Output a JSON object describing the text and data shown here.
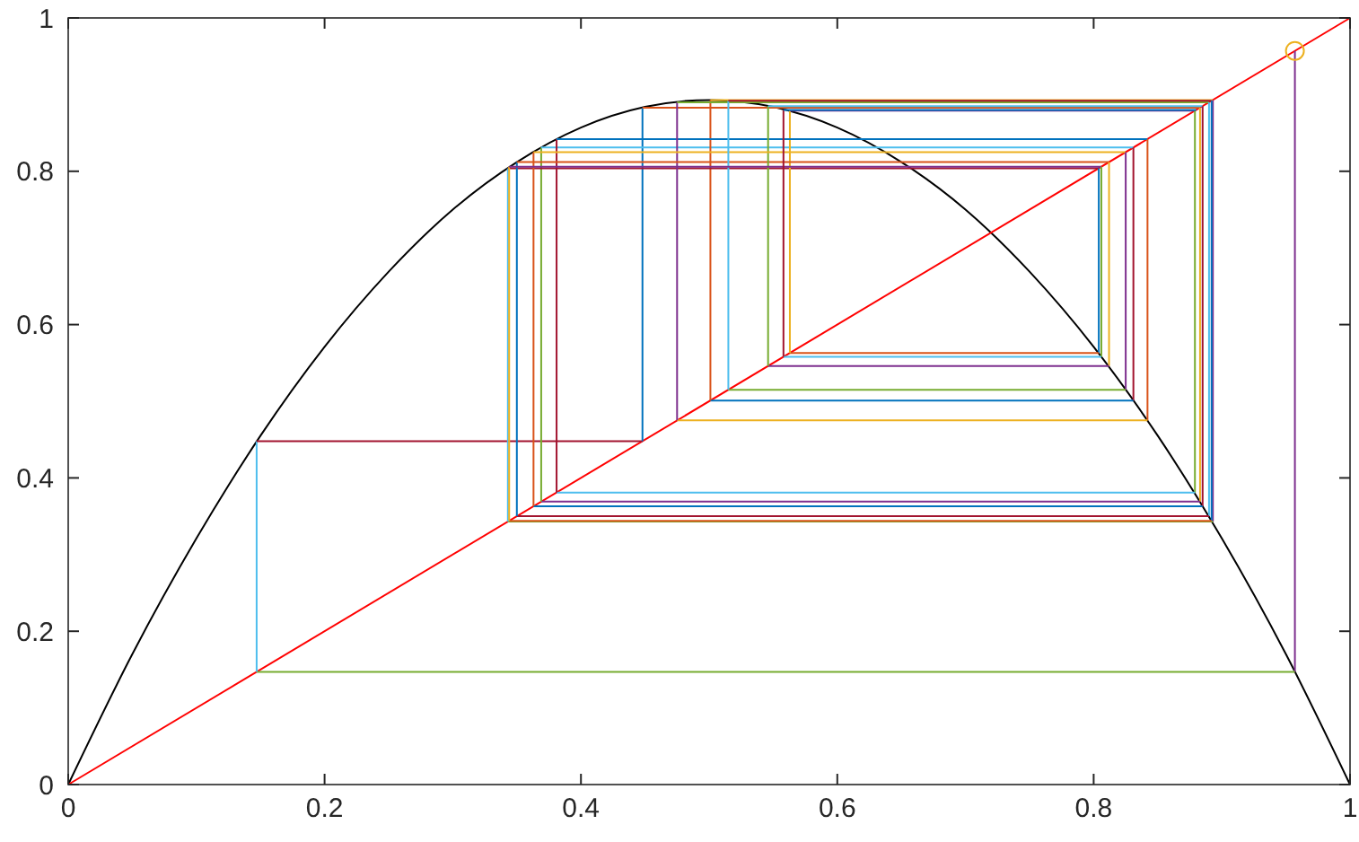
{
  "chart_data": {
    "type": "line",
    "xlim": [
      0,
      1
    ],
    "ylim": [
      0,
      1
    ],
    "xticks": [
      0,
      0.2,
      0.4,
      0.6,
      0.8,
      1
    ],
    "yticks": [
      0,
      0.2,
      0.4,
      0.6,
      0.8,
      1
    ],
    "grid": false,
    "series": [
      {
        "color": "#000000",
        "x": [
          0,
          0.05,
          0.1,
          0.15,
          0.2,
          0.25,
          0.3,
          0.35,
          0.4,
          0.45,
          0.5,
          0.55,
          0.6,
          0.65,
          0.7,
          0.75,
          0.8,
          0.85,
          0.9,
          0.95,
          1
        ],
        "values": [
          0,
          0.17,
          0.321,
          0.455,
          0.571,
          0.669,
          0.75,
          0.812,
          0.857,
          0.884,
          0.893,
          0.884,
          0.857,
          0.812,
          0.75,
          0.669,
          0.571,
          0.455,
          0.321,
          0.17,
          0
        ]
      },
      {
        "color": "#ff0000",
        "x": [
          0,
          1
        ],
        "values": [
          0,
          1
        ]
      },
      {
        "color": "#7e2f8e",
        "x": [
          0.957,
          0.957
        ],
        "values": [
          0.957,
          0.147
        ]
      },
      {
        "color": "#77ac30",
        "x": [
          0.957,
          0.147
        ],
        "values": [
          0.147,
          0.147
        ]
      },
      {
        "color": "#4dbeee",
        "x": [
          0.147,
          0.147
        ],
        "values": [
          0.147,
          0.448
        ]
      },
      {
        "color": "#a2142f",
        "x": [
          0.147,
          0.448
        ],
        "values": [
          0.448,
          0.448
        ]
      },
      {
        "color": "#0072bd",
        "x": [
          0.448,
          0.448
        ],
        "values": [
          0.448,
          0.883
        ]
      },
      {
        "color": "#d95319",
        "x": [
          0.448,
          0.883
        ],
        "values": [
          0.883,
          0.883
        ]
      },
      {
        "color": "#edb120",
        "x": [
          0.883,
          0.883
        ],
        "values": [
          0.883,
          0.369
        ]
      },
      {
        "color": "#7e2f8e",
        "x": [
          0.883,
          0.369
        ],
        "values": [
          0.369,
          0.369
        ]
      },
      {
        "color": "#77ac30",
        "x": [
          0.369,
          0.369
        ],
        "values": [
          0.369,
          0.831
        ]
      },
      {
        "color": "#4dbeee",
        "x": [
          0.369,
          0.831
        ],
        "values": [
          0.831,
          0.831
        ]
      },
      {
        "color": "#a2142f",
        "x": [
          0.831,
          0.831
        ],
        "values": [
          0.831,
          0.501
        ]
      },
      {
        "color": "#0072bd",
        "x": [
          0.831,
          0.501
        ],
        "values": [
          0.501,
          0.501
        ]
      },
      {
        "color": "#d95319",
        "x": [
          0.501,
          0.501
        ],
        "values": [
          0.501,
          0.893
        ]
      },
      {
        "color": "#edb120",
        "x": [
          0.501,
          0.893
        ],
        "values": [
          0.893,
          0.893
        ]
      },
      {
        "color": "#7e2f8e",
        "x": [
          0.893,
          0.893
        ],
        "values": [
          0.893,
          0.343
        ]
      },
      {
        "color": "#77ac30",
        "x": [
          0.893,
          0.343
        ],
        "values": [
          0.343,
          0.343
        ]
      },
      {
        "color": "#4dbeee",
        "x": [
          0.343,
          0.343
        ],
        "values": [
          0.343,
          0.804
        ]
      },
      {
        "color": "#a2142f",
        "x": [
          0.343,
          0.804
        ],
        "values": [
          0.804,
          0.804
        ]
      },
      {
        "color": "#0072bd",
        "x": [
          0.804,
          0.804
        ],
        "values": [
          0.804,
          0.563
        ]
      },
      {
        "color": "#d95319",
        "x": [
          0.804,
          0.563
        ],
        "values": [
          0.563,
          0.563
        ]
      },
      {
        "color": "#edb120",
        "x": [
          0.563,
          0.563
        ],
        "values": [
          0.563,
          0.879
        ]
      },
      {
        "color": "#7e2f8e",
        "x": [
          0.563,
          0.879
        ],
        "values": [
          0.879,
          0.879
        ]
      },
      {
        "color": "#77ac30",
        "x": [
          0.879,
          0.879
        ],
        "values": [
          0.879,
          0.381
        ]
      },
      {
        "color": "#4dbeee",
        "x": [
          0.879,
          0.381
        ],
        "values": [
          0.381,
          0.381
        ]
      },
      {
        "color": "#a2142f",
        "x": [
          0.381,
          0.381
        ],
        "values": [
          0.381,
          0.842
        ]
      },
      {
        "color": "#0072bd",
        "x": [
          0.381,
          0.842
        ],
        "values": [
          0.842,
          0.842
        ]
      },
      {
        "color": "#d95319",
        "x": [
          0.842,
          0.842
        ],
        "values": [
          0.842,
          0.475
        ]
      },
      {
        "color": "#edb120",
        "x": [
          0.842,
          0.475
        ],
        "values": [
          0.475,
          0.475
        ]
      },
      {
        "color": "#7e2f8e",
        "x": [
          0.475,
          0.475
        ],
        "values": [
          0.475,
          0.89
        ]
      },
      {
        "color": "#77ac30",
        "x": [
          0.475,
          0.89
        ],
        "values": [
          0.89,
          0.89
        ]
      },
      {
        "color": "#4dbeee",
        "x": [
          0.89,
          0.89
        ],
        "values": [
          0.89,
          0.35
        ]
      },
      {
        "color": "#a2142f",
        "x": [
          0.89,
          0.35
        ],
        "values": [
          0.35,
          0.35
        ]
      },
      {
        "color": "#0072bd",
        "x": [
          0.35,
          0.35
        ],
        "values": [
          0.35,
          0.812
        ]
      },
      {
        "color": "#d95319",
        "x": [
          0.35,
          0.812
        ],
        "values": [
          0.812,
          0.812
        ]
      },
      {
        "color": "#edb120",
        "x": [
          0.812,
          0.812
        ],
        "values": [
          0.812,
          0.546
        ]
      },
      {
        "color": "#7e2f8e",
        "x": [
          0.812,
          0.546
        ],
        "values": [
          0.546,
          0.546
        ]
      },
      {
        "color": "#77ac30",
        "x": [
          0.546,
          0.546
        ],
        "values": [
          0.546,
          0.885
        ]
      },
      {
        "color": "#4dbeee",
        "x": [
          0.546,
          0.885
        ],
        "values": [
          0.885,
          0.885
        ]
      },
      {
        "color": "#a2142f",
        "x": [
          0.885,
          0.885
        ],
        "values": [
          0.885,
          0.363
        ]
      },
      {
        "color": "#0072bd",
        "x": [
          0.885,
          0.363
        ],
        "values": [
          0.363,
          0.363
        ]
      },
      {
        "color": "#d95319",
        "x": [
          0.363,
          0.363
        ],
        "values": [
          0.363,
          0.825
        ]
      },
      {
        "color": "#edb120",
        "x": [
          0.363,
          0.825
        ],
        "values": [
          0.825,
          0.825
        ]
      },
      {
        "color": "#7e2f8e",
        "x": [
          0.825,
          0.825
        ],
        "values": [
          0.825,
          0.515
        ]
      },
      {
        "color": "#77ac30",
        "x": [
          0.825,
          0.515
        ],
        "values": [
          0.515,
          0.515
        ]
      },
      {
        "color": "#4dbeee",
        "x": [
          0.515,
          0.515
        ],
        "values": [
          0.515,
          0.892
        ]
      },
      {
        "color": "#a2142f",
        "x": [
          0.515,
          0.892
        ],
        "values": [
          0.892,
          0.892
        ]
      },
      {
        "color": "#0072bd",
        "x": [
          0.892,
          0.892
        ],
        "values": [
          0.892,
          0.344
        ]
      },
      {
        "color": "#d95319",
        "x": [
          0.892,
          0.344
        ],
        "values": [
          0.344,
          0.344
        ]
      },
      {
        "color": "#edb120",
        "x": [
          0.344,
          0.344
        ],
        "values": [
          0.344,
          0.806
        ]
      },
      {
        "color": "#7e2f8e",
        "x": [
          0.344,
          0.806
        ],
        "values": [
          0.806,
          0.806
        ]
      },
      {
        "color": "#77ac30",
        "x": [
          0.806,
          0.806
        ],
        "values": [
          0.806,
          0.558
        ]
      },
      {
        "color": "#4dbeee",
        "x": [
          0.806,
          0.558
        ],
        "values": [
          0.558,
          0.558
        ]
      },
      {
        "color": "#a2142f",
        "x": [
          0.558,
          0.558
        ],
        "values": [
          0.558,
          0.88
        ]
      },
      {
        "color": "#0072bd",
        "x": [
          0.558,
          0.88
        ],
        "values": [
          0.88,
          0.88
        ]
      },
      {
        "type": "scatter",
        "color": "#edb120",
        "marker": "circle",
        "x": [
          0.957
        ],
        "values": [
          0.957
        ]
      }
    ]
  }
}
